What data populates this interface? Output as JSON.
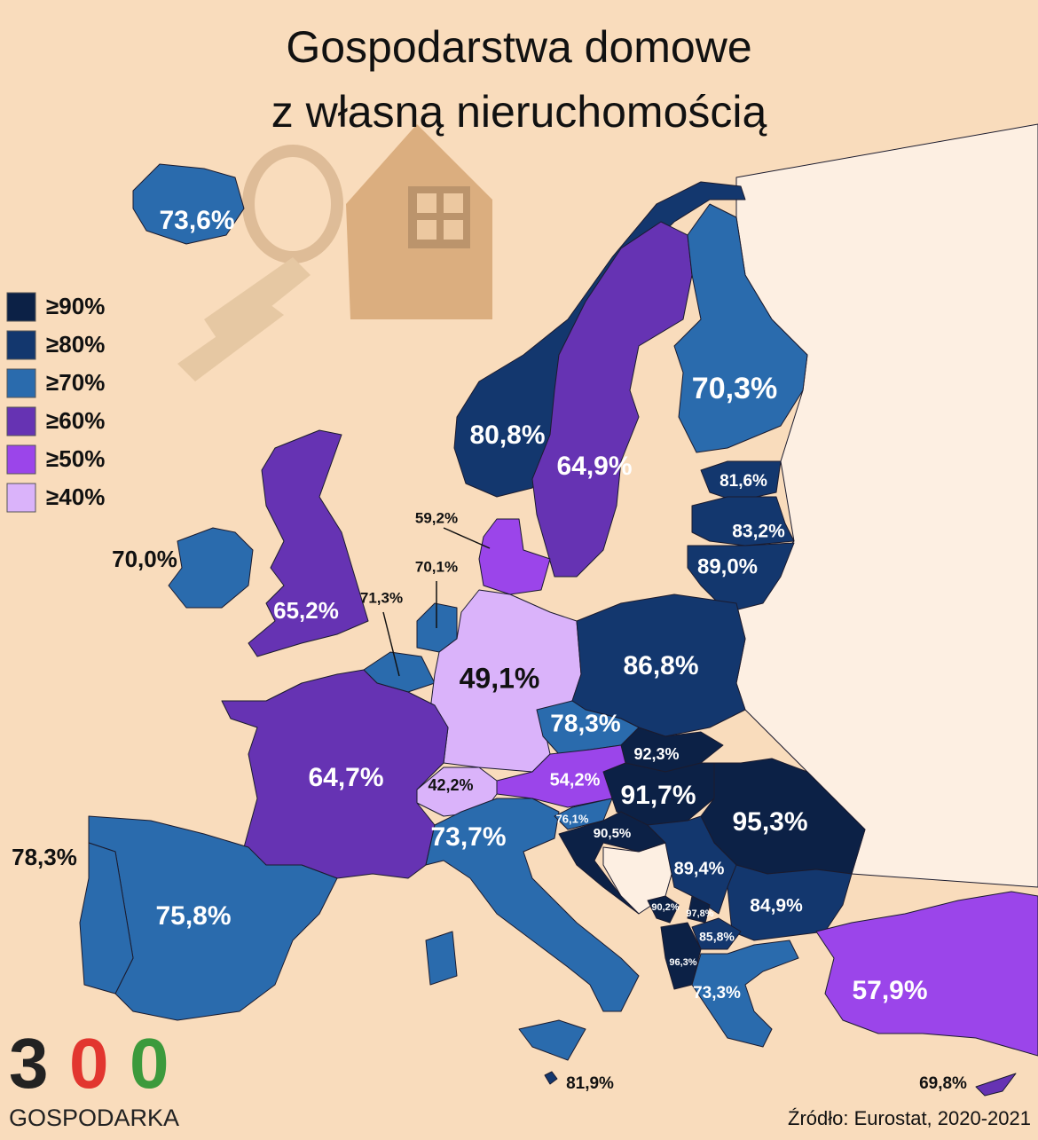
{
  "title": [
    "Gospodarstwa domowe",
    "z własną nieruchomością"
  ],
  "legend": [
    {
      "label": "≥90%",
      "color": "#0c2146"
    },
    {
      "label": "≥80%",
      "color": "#13376e"
    },
    {
      "label": "≥70%",
      "color": "#2a6bad"
    },
    {
      "label": "≥60%",
      "color": "#6633b3"
    },
    {
      "label": "≥50%",
      "color": "#9b45ea"
    },
    {
      "label": "≥40%",
      "color": "#dab3fa"
    }
  ],
  "regions": [
    {
      "label": "73,6%",
      "color": "#2a6bad"
    },
    {
      "label": "70,0%",
      "color": "#2a6bad"
    },
    {
      "label": "65,2%",
      "color": "#6633b3"
    },
    {
      "label": "80,8%",
      "color": "#13376e"
    },
    {
      "label": "64,9%",
      "color": "#6633b3"
    },
    {
      "label": "70,3%",
      "color": "#2a6bad"
    },
    {
      "label": "81,6%",
      "color": "#13376e"
    },
    {
      "label": "83,2%",
      "color": "#13376e"
    },
    {
      "label": "89,0%",
      "color": "#13376e"
    },
    {
      "label": "59,2%",
      "color": "#9b45ea"
    },
    {
      "label": "70,1%",
      "color": "#2a6bad"
    },
    {
      "label": "71,3%",
      "color": "#2a6bad"
    },
    {
      "label": "49,1%",
      "color": "#dab3fa"
    },
    {
      "label": "86,8%",
      "color": "#13376e"
    },
    {
      "label": "78,3%",
      "color": "#2a6bad"
    },
    {
      "label": "92,3%",
      "color": "#0c2146"
    },
    {
      "label": "91,7%",
      "color": "#0c2146"
    },
    {
      "label": "95,3%",
      "color": "#0c2146"
    },
    {
      "label": "54,2%",
      "color": "#9b45ea"
    },
    {
      "label": "42,2%",
      "color": "#dab3fa"
    },
    {
      "label": "64,7%",
      "color": "#6633b3"
    },
    {
      "label": "73,7%",
      "color": "#2a6bad"
    },
    {
      "label": "76,1%",
      "color": "#2a6bad"
    },
    {
      "label": "90,5%",
      "color": "#0c2146"
    },
    {
      "label": "89,4%",
      "color": "#13376e"
    },
    {
      "label": "84,9%",
      "color": "#13376e"
    },
    {
      "label": "90,2%",
      "color": "#0c2146"
    },
    {
      "label": "97,8%",
      "color": "#0c2146"
    },
    {
      "label": "85,8%",
      "color": "#13376e"
    },
    {
      "label": "96,3%",
      "color": "#0c2146"
    },
    {
      "label": "73,3%",
      "color": "#2a6bad"
    },
    {
      "label": "57,9%",
      "color": "#9b45ea"
    },
    {
      "label": "75,8%",
      "color": "#2a6bad"
    },
    {
      "label": "78,3%",
      "color": "#2a6bad"
    },
    {
      "label": "81,9%",
      "color": "#13376e"
    },
    {
      "label": "69,8%",
      "color": "#6633b3"
    }
  ],
  "logo": {
    "digits": [
      "3",
      "0",
      "0"
    ],
    "name": "GOSPODARKA"
  },
  "source": "Źródło: Eurostat, 2020-2021"
}
